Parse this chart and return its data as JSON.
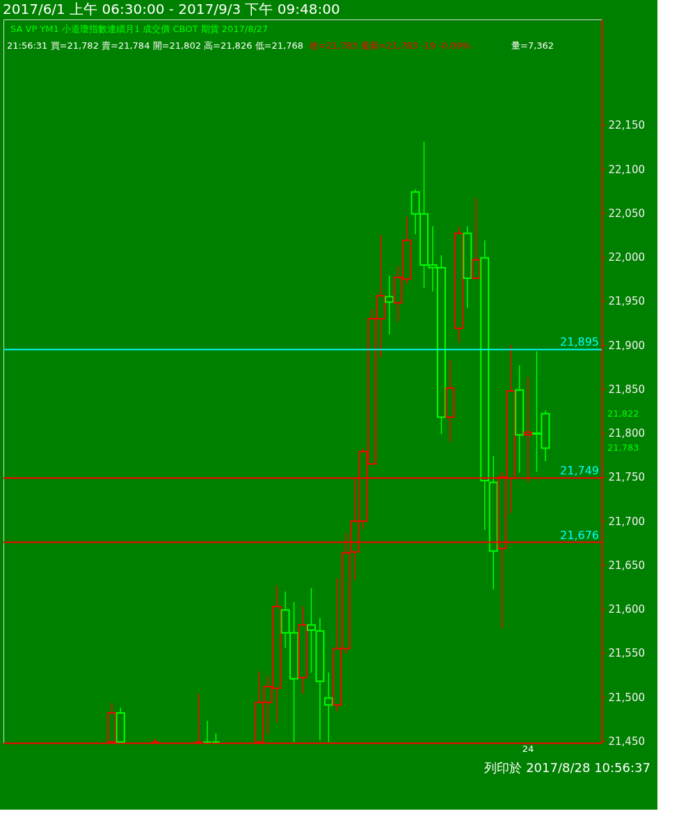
{
  "chart_data": {
    "type": "candlestick",
    "title": "2017/6/1 上午 06:30:00 - 2017/9/3 下午 09:48:00",
    "subtitle": "SA  VP  YM1  小道瓊指數連續月1   成交價  CBOT  期貨  2017/8/27",
    "annotations": [
      "21:56:31  買=21,782  賣=21,784  開=21,802  高=21,826  低=21,768",
      "收=21,783  最新=21,783  -19  -0.09%",
      "量=7,362",
      "列印於 2017/8/28 10:56:37",
      "21,822",
      "21,783"
    ],
    "categories": [
      null,
      null,
      null,
      null,
      null,
      null,
      null,
      null,
      null,
      null,
      null,
      null,
      null,
      null,
      null,
      null,
      null,
      null,
      null,
      null,
      null,
      null,
      null,
      null,
      null,
      null,
      null,
      null,
      null,
      null,
      null,
      null,
      null,
      null,
      null,
      null,
      null,
      null,
      null,
      null,
      null,
      null,
      null,
      null,
      null,
      null,
      null,
      null,
      null,
      null,
      null,
      null,
      null,
      null,
      null,
      null,
      null,
      null,
      null,
      null,
      "24",
      null,
      null,
      null,
      null,
      null,
      null,
      null,
      null
    ],
    "ohlc": [
      null,
      null,
      null,
      null,
      null,
      null,
      null,
      null,
      null,
      null,
      null,
      null,
      [
        21449,
        21493,
        21449,
        21482
      ],
      [
        21482,
        21488,
        21449,
        21449
      ],
      null,
      null,
      null,
      [
        21449,
        21453,
        21449,
        21449
      ],
      null,
      null,
      null,
      null,
      [
        21449,
        21504,
        21449,
        21449
      ],
      [
        21449,
        21473,
        21449,
        21449
      ],
      [
        21449,
        21459,
        21449,
        21449
      ],
      null,
      null,
      null,
      null,
      [
        21449,
        21529,
        21449,
        21494
      ],
      [
        21494,
        21524,
        21458,
        21512
      ],
      [
        21510,
        21627,
        21471,
        21603
      ],
      [
        21599,
        21620,
        21556,
        21573
      ],
      [
        21573,
        21608,
        21449,
        21521
      ],
      [
        21522,
        21603,
        21504,
        21582
      ],
      [
        21582,
        21624,
        21528,
        21576
      ],
      [
        21575,
        21590,
        21451,
        21518
      ],
      [
        21499,
        21528,
        21449,
        21491
      ],
      [
        21491,
        21635,
        21484,
        21555
      ],
      [
        21555,
        21686,
        21550,
        21664
      ],
      [
        21665,
        21750,
        21633,
        21700
      ],
      [
        21700,
        21783,
        21691,
        21779
      ],
      [
        21765,
        21941,
        21765,
        21930
      ],
      [
        21930,
        22025,
        21886,
        21956
      ],
      [
        21955,
        21979,
        21912,
        21949
      ],
      [
        21948,
        21990,
        21927,
        21977
      ],
      [
        21975,
        22046,
        21970,
        22019
      ],
      [
        22074,
        22077,
        22026,
        22049
      ],
      [
        22049,
        22131,
        21965,
        21991
      ],
      [
        21991,
        22035,
        21961,
        21988
      ],
      [
        21988,
        22002,
        21799,
        21818
      ],
      [
        21818,
        21883,
        21790,
        21851
      ],
      [
        21919,
        22034,
        21903,
        22027
      ],
      [
        22027,
        22035,
        21942,
        21976
      ],
      [
        21976,
        22067,
        21975,
        21997
      ],
      [
        21999,
        22019,
        21690,
        21746
      ],
      [
        21744,
        21774,
        21622,
        21666
      ],
      [
        21669,
        21756,
        21578,
        21750
      ],
      [
        21749,
        21900,
        21709,
        21848
      ],
      [
        21849,
        21877,
        21755,
        21798
      ],
      [
        21798,
        21864,
        21744,
        21801
      ],
      [
        21800,
        21893,
        21756,
        21799
      ],
      [
        21822,
        21826,
        21768,
        21783
      ],
      null,
      null,
      null,
      null,
      null,
      null
    ],
    "colors": [
      null,
      null,
      null,
      null,
      null,
      null,
      null,
      null,
      null,
      null,
      null,
      null,
      "#ff0000",
      "#00ff00",
      null,
      null,
      null,
      "#ff0000",
      null,
      null,
      null,
      null,
      "#ff0000",
      "#00ff00",
      "#00ff00",
      null,
      null,
      null,
      null,
      "#ff0000",
      "#ff0000",
      "#ff0000",
      "#00ff00",
      "#00ff00",
      "#ff0000",
      "#00ff00",
      "#00ff00",
      "#00ff00",
      "#ff0000",
      "#ff0000",
      "#ff0000",
      "#ff0000",
      "#ff0000",
      "#ff0000",
      "#00ff00",
      "#ff0000",
      "#ff0000",
      "#00ff00",
      "#00ff00",
      "#00ff00",
      "#00ff00",
      "#ff0000",
      "#ff0000",
      "#00ff00",
      "#ff0000",
      "#00ff00",
      "#00ff00",
      "#ff0000",
      "#ff0000",
      "#00ff00",
      "#ff0000",
      "#00ff00",
      "#00ff00",
      null,
      null,
      null,
      null,
      null,
      null
    ],
    "ylim": [
      21448,
      22270
    ],
    "yticks": [
      {
        "value": 21450,
        "label": "21,450"
      },
      {
        "value": 21500,
        "label": "21,500"
      },
      {
        "value": 21550,
        "label": "21,550"
      },
      {
        "value": 21600,
        "label": "21,600"
      },
      {
        "value": 21650,
        "label": "21,650"
      },
      {
        "value": 21700,
        "label": "21,700"
      },
      {
        "value": 21750,
        "label": "21,750"
      },
      {
        "value": 21800,
        "label": "21,800"
      },
      {
        "value": 21850,
        "label": "21,850"
      },
      {
        "value": 21900,
        "label": "21,900"
      },
      {
        "value": 21950,
        "label": "21,950"
      },
      {
        "value": 22000,
        "label": "22,000"
      },
      {
        "value": 22050,
        "label": "22,050"
      },
      {
        "value": 22100,
        "label": "22,100"
      },
      {
        "value": 22150,
        "label": "22,150"
      }
    ],
    "ref_lines": [
      {
        "axis": "y",
        "value": 21895,
        "label": "21,895",
        "color": "#00ffff"
      },
      {
        "axis": "y",
        "value": 21749,
        "label": "21,749",
        "color": "#ff0000"
      },
      {
        "axis": "y",
        "value": 21676,
        "label": "21,676",
        "color": "#ff0000"
      }
    ],
    "grid": false
  }
}
